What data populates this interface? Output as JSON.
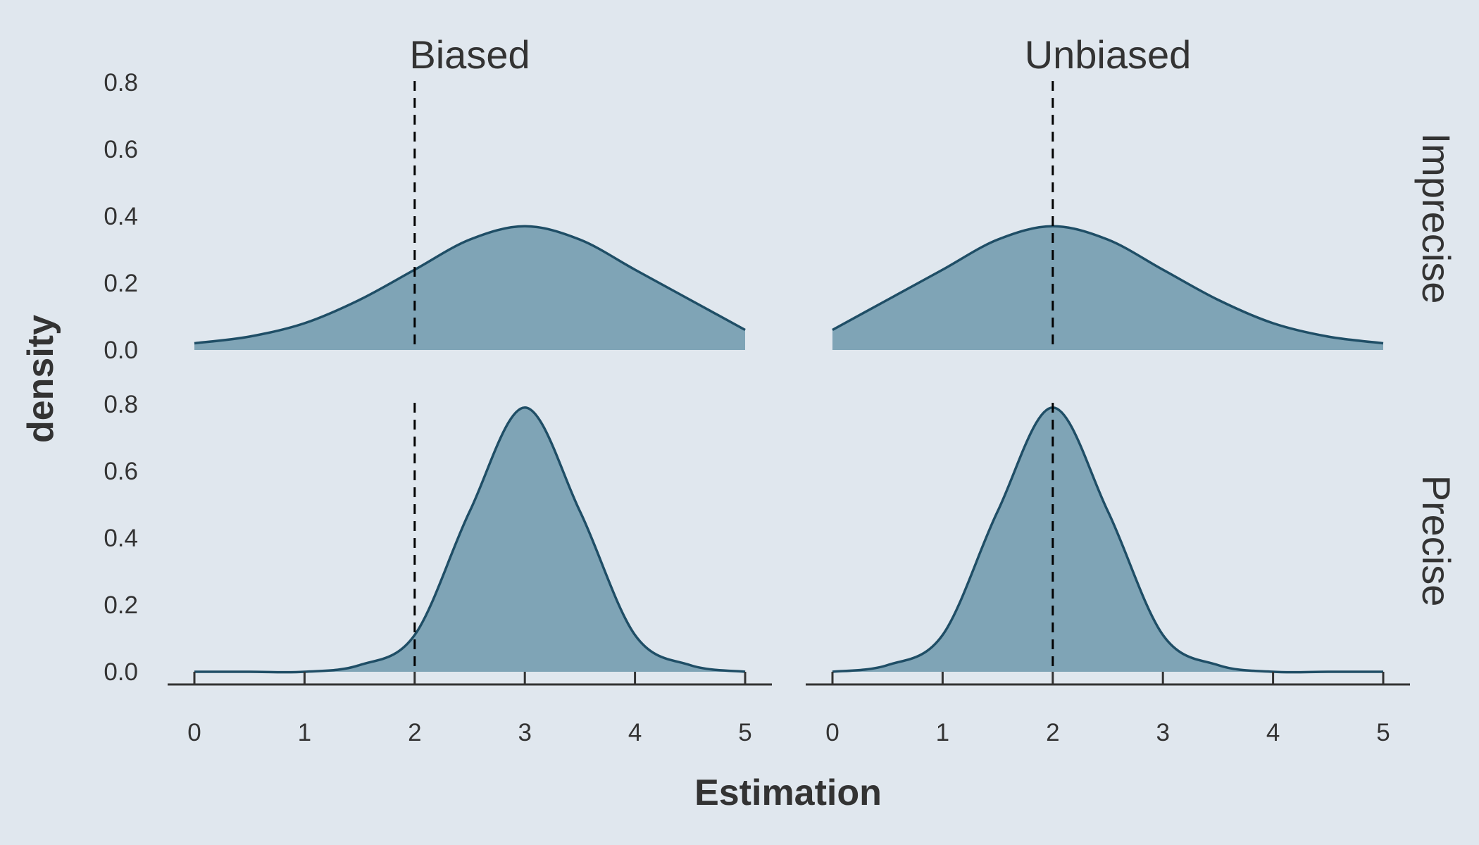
{
  "chart_data": {
    "type": "area",
    "xlabel": "Estimation",
    "ylabel": "density",
    "xlim": [
      0,
      5
    ],
    "ylim": [
      0,
      0.8
    ],
    "x_ticks": [
      0,
      1,
      2,
      3,
      4,
      5
    ],
    "y_ticks": [
      "0.0",
      "0.2",
      "0.4",
      "0.6",
      "0.8"
    ],
    "column_facets": [
      "Biased",
      "Unbiased"
    ],
    "row_facets": [
      "Imprecise",
      "Precise"
    ],
    "colors": {
      "background": "#e0e7ee",
      "fill": "#7fa4b6",
      "line": "#1f4e66",
      "reference_line": "#000000",
      "text": "#333333"
    },
    "panels": [
      {
        "column": "Biased",
        "row": "Imprecise",
        "reference_x": 2,
        "x": [
          0,
          0.5,
          1,
          1.5,
          2,
          2.5,
          3,
          3.5,
          4,
          4.5,
          5
        ],
        "y": [
          0.02,
          0.04,
          0.08,
          0.15,
          0.24,
          0.33,
          0.37,
          0.33,
          0.24,
          0.15,
          0.06
        ]
      },
      {
        "column": "Unbiased",
        "row": "Imprecise",
        "reference_x": 2,
        "x": [
          0,
          0.5,
          1,
          1.5,
          2,
          2.5,
          3,
          3.5,
          4,
          4.5,
          5
        ],
        "y": [
          0.06,
          0.15,
          0.24,
          0.33,
          0.37,
          0.33,
          0.24,
          0.15,
          0.08,
          0.04,
          0.02
        ]
      },
      {
        "column": "Biased",
        "row": "Precise",
        "reference_x": 2,
        "x": [
          0,
          0.5,
          1,
          1.5,
          2,
          2.5,
          3,
          3.5,
          4,
          4.5,
          5
        ],
        "y": [
          0.0,
          0.0,
          0.0,
          0.02,
          0.11,
          0.48,
          0.79,
          0.48,
          0.11,
          0.02,
          0.0
        ]
      },
      {
        "column": "Unbiased",
        "row": "Precise",
        "reference_x": 2,
        "x": [
          0,
          0.5,
          1,
          1.5,
          2,
          2.5,
          3,
          3.5,
          4,
          4.5,
          5
        ],
        "y": [
          0.0,
          0.02,
          0.11,
          0.48,
          0.79,
          0.48,
          0.11,
          0.02,
          0.0,
          0.0,
          0.0
        ]
      }
    ]
  }
}
